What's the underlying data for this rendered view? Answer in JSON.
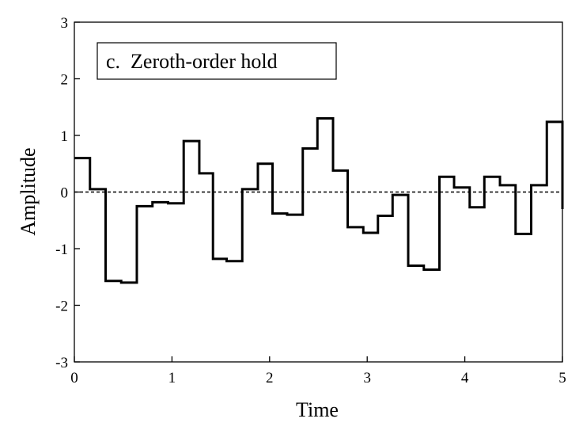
{
  "chart_data": {
    "type": "line",
    "style": "step-post",
    "legend": {
      "text": "c.  Zeroth-order hold",
      "placement": "top-left"
    },
    "xlabel": "Time",
    "ylabel": "Amplitude",
    "xlim": [
      0,
      5
    ],
    "ylim": [
      -3,
      3
    ],
    "xticks": [
      0,
      1,
      2,
      3,
      4,
      5
    ],
    "yticks": [
      -3,
      -2,
      -1,
      0,
      1,
      2,
      3
    ],
    "xtick_labels": [
      "0",
      "1",
      "2",
      "3",
      "4",
      "5"
    ],
    "ytick_labels": [
      "-3",
      "-2",
      "-1",
      "0",
      "1",
      "2",
      "3"
    ],
    "baseline": {
      "y": 0,
      "style": "dashed"
    },
    "grid": false,
    "series": [
      {
        "x": [
          0,
          0.16,
          0.32,
          0.48,
          0.64,
          0.8,
          0.96,
          1.12,
          1.28,
          1.42,
          1.56,
          1.72,
          1.88,
          2.03,
          2.18,
          2.34,
          2.49,
          2.65,
          2.8,
          2.96,
          3.11,
          3.26,
          3.42,
          3.58,
          3.74,
          3.89,
          4.05,
          4.2,
          4.36,
          4.52,
          4.68,
          4.84,
          5
        ],
        "y": [
          0.6,
          0.05,
          -1.57,
          -1.6,
          -0.25,
          -0.18,
          -0.2,
          0.9,
          0.33,
          -1.18,
          -1.22,
          0.05,
          0.5,
          -0.38,
          -0.4,
          0.77,
          1.3,
          0.38,
          -0.62,
          -0.72,
          -0.42,
          -0.05,
          -1.3,
          -1.37,
          0.27,
          0.08,
          -0.27,
          0.27,
          0.12,
          -0.74,
          0.12,
          1.24,
          -0.3
        ],
        "color": "#000000"
      }
    ]
  }
}
